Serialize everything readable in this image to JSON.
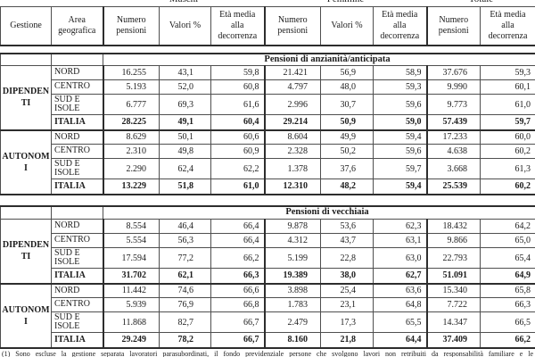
{
  "group_headers": [
    "Maschi",
    "Femmine",
    "Totale"
  ],
  "column_headers": [
    "Gestione",
    "Area geografica",
    "Numero pensioni",
    "Valori %",
    "Età media alla decorrenza",
    "Numero pensioni",
    "Valori %",
    "Età media alla decorrenza",
    "Numero pensioni",
    "Età media alla decorrenza"
  ],
  "sections": [
    {
      "title": "Pensioni di anzianità/anticipata",
      "blocks": [
        {
          "gestione": "DIPENDENTI",
          "rows": [
            {
              "area": "NORD",
              "bold": false,
              "values": [
                "16.255",
                "43,1",
                "59,8",
                "21.421",
                "56,9",
                "58,9",
                "37.676",
                "59,3"
              ]
            },
            {
              "area": "CENTRO",
              "bold": false,
              "values": [
                "5.193",
                "52,0",
                "60,8",
                "4.797",
                "48,0",
                "59,3",
                "9.990",
                "60,1"
              ]
            },
            {
              "area": "SUD E ISOLE",
              "bold": false,
              "values": [
                "6.777",
                "69,3",
                "61,6",
                "2.996",
                "30,7",
                "59,6",
                "9.773",
                "61,0"
              ]
            },
            {
              "area": "ITALIA",
              "bold": true,
              "values": [
                "28.225",
                "49,1",
                "60,4",
                "29.214",
                "50,9",
                "59,0",
                "57.439",
                "59,7"
              ]
            }
          ]
        },
        {
          "gestione": "AUTONOMI",
          "rows": [
            {
              "area": "NORD",
              "bold": false,
              "values": [
                "8.629",
                "50,1",
                "60,6",
                "8.604",
                "49,9",
                "59,4",
                "17.233",
                "60,0"
              ]
            },
            {
              "area": "CENTRO",
              "bold": false,
              "values": [
                "2.310",
                "49,8",
                "60,9",
                "2.328",
                "50,2",
                "59,6",
                "4.638",
                "60,2"
              ]
            },
            {
              "area": "SUD E ISOLE",
              "bold": false,
              "values": [
                "2.290",
                "62,4",
                "62,2",
                "1.378",
                "37,6",
                "59,7",
                "3.668",
                "61,3"
              ]
            },
            {
              "area": "ITALIA",
              "bold": true,
              "values": [
                "13.229",
                "51,8",
                "61,0",
                "12.310",
                "48,2",
                "59,4",
                "25.539",
                "60,2"
              ]
            }
          ]
        }
      ]
    },
    {
      "title": "Pensioni di vecchiaia",
      "blocks": [
        {
          "gestione": "DIPENDENTI",
          "rows": [
            {
              "area": "NORD",
              "bold": false,
              "values": [
                "8.554",
                "46,4",
                "66,4",
                "9.878",
                "53,6",
                "62,3",
                "18.432",
                "64,2"
              ]
            },
            {
              "area": "CENTRO",
              "bold": false,
              "values": [
                "5.554",
                "56,3",
                "66,4",
                "4.312",
                "43,7",
                "63,1",
                "9.866",
                "65,0"
              ]
            },
            {
              "area": "SUD E ISOLE",
              "bold": false,
              "values": [
                "17.594",
                "77,2",
                "66,2",
                "5.199",
                "22,8",
                "63,0",
                "22.793",
                "65,4"
              ]
            },
            {
              "area": "ITALIA",
              "bold": true,
              "values": [
                "31.702",
                "62,1",
                "66,3",
                "19.389",
                "38,0",
                "62,7",
                "51.091",
                "64,9"
              ]
            }
          ]
        },
        {
          "gestione": "AUTONOMI",
          "rows": [
            {
              "area": "NORD",
              "bold": false,
              "values": [
                "11.442",
                "74,6",
                "66,6",
                "3.898",
                "25,4",
                "63,6",
                "15.340",
                "65,8"
              ]
            },
            {
              "area": "CENTRO",
              "bold": false,
              "values": [
                "5.939",
                "76,9",
                "66,8",
                "1.783",
                "23,1",
                "64,8",
                "7.722",
                "66,3"
              ]
            },
            {
              "area": "SUD E ISOLE",
              "bold": false,
              "values": [
                "11.868",
                "82,7",
                "66,7",
                "2.479",
                "17,3",
                "65,5",
                "14.347",
                "66,5"
              ]
            },
            {
              "area": "ITALIA",
              "bold": true,
              "values": [
                "29.249",
                "78,2",
                "66,7",
                "8.160",
                "21,8",
                "64,4",
                "37.409",
                "66,2"
              ]
            }
          ]
        }
      ]
    }
  ],
  "footnote": "(1) Sono escluse la gestione separata lavoratori parasubordinati, il fondo previdenziale persone che svolgono lavori non retribuiti da responsabilità familiare e le"
}
